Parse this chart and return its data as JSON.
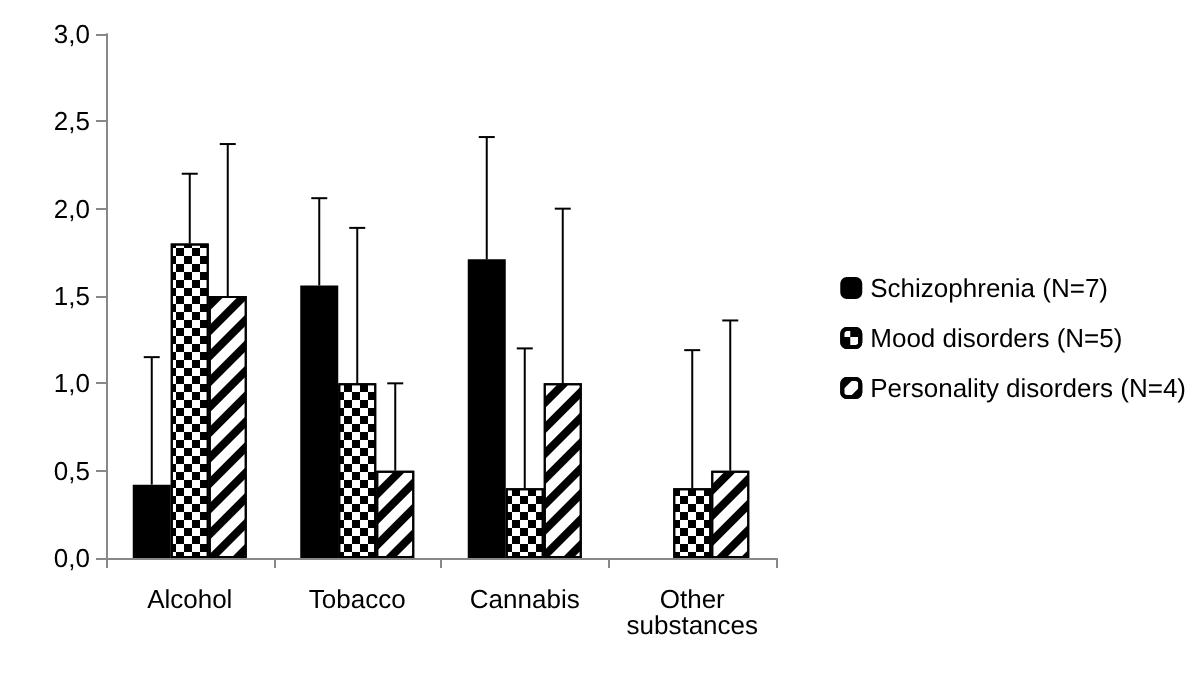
{
  "chart_data": {
    "type": "bar",
    "categories": [
      "Alcohol",
      "Tobacco",
      "Cannabis",
      "Other substances"
    ],
    "series": [
      {
        "name": "Schizophrenia (N=7)",
        "color": "#000000",
        "values": [
          0.42,
          1.56,
          1.71,
          null
        ],
        "errors": [
          [
            0.42,
            1.15
          ],
          [
            1.56,
            2.06
          ],
          [
            1.71,
            2.41
          ],
          null
        ]
      },
      {
        "name": "Mood disorders (N=5)",
        "color": "#ffffff",
        "values": [
          1.8,
          1.0,
          0.4,
          0.4
        ],
        "errors": [
          [
            1.8,
            2.2
          ],
          [
            1.0,
            1.89
          ],
          [
            0.4,
            1.2
          ],
          [
            0.4,
            1.19
          ]
        ]
      },
      {
        "name": "Personality disorders (N=4)",
        "color": "#ffffff",
        "values": [
          1.5,
          0.5,
          1.0,
          0.5
        ],
        "errors": [
          [
            1.5,
            2.37
          ],
          [
            0.5,
            1.0
          ],
          [
            1.0,
            2.0
          ],
          [
            0.5,
            1.36
          ]
        ]
      }
    ],
    "ylim": [
      0,
      3
    ],
    "yticks": [
      {
        "value": 0,
        "label": "0,0"
      },
      {
        "value": 0.5,
        "label": "0,5"
      },
      {
        "value": 1,
        "label": "1,0"
      },
      {
        "value": 1.5,
        "label": "1,5"
      },
      {
        "value": 2,
        "label": "2,0"
      },
      {
        "value": 2.5,
        "label": "2,5"
      },
      {
        "value": 3,
        "label": "3,0"
      }
    ],
    "grid": false,
    "legend": "right"
  }
}
